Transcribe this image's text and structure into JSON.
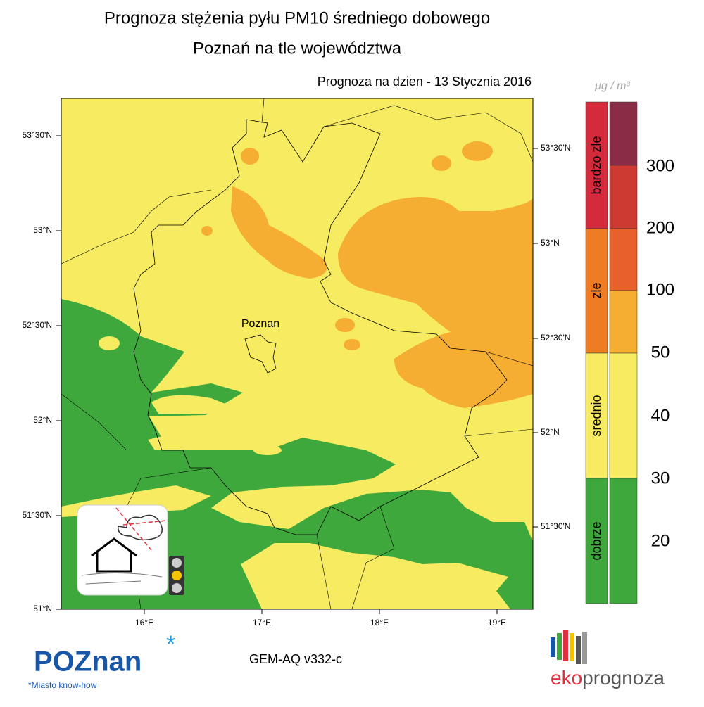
{
  "header": {
    "title": "Prognoza stężenia pyłu PM10 średniego dobowego",
    "subtitle": "Poznań na tle województwa",
    "date_label": "Prognoza na dzien -  13 Stycznia 2016"
  },
  "map": {
    "city_label": "Poznan",
    "lat_labels_left": [
      "53°30'N",
      "53°N",
      "52°30'N",
      "52°N",
      "51°30'N",
      "51°N"
    ],
    "lat_labels_right": [
      "53°30'N",
      "53°N",
      "52°30'N",
      "52°N",
      "51°30'N"
    ],
    "lon_labels": [
      "16°E",
      "17°E",
      "18°E",
      "19°E"
    ]
  },
  "legend": {
    "unit": "μg / m³",
    "categories": [
      "bardzo zle",
      "zle",
      "srednio",
      "dobrze"
    ],
    "levels": [
      "300",
      "200",
      "100",
      "50",
      "40",
      "30",
      "20"
    ]
  },
  "footer": {
    "model": "GEM-AQ v332-c",
    "logo_left": "POZnan",
    "logo_left_tagline": "*Miasto know-how",
    "logo_right_a": "eko",
    "logo_right_b": "prognoza"
  }
}
